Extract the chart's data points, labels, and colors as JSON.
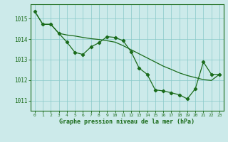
{
  "line1_x": [
    0,
    1,
    2,
    3,
    4,
    5,
    6,
    7,
    8,
    9,
    10,
    11,
    12,
    13,
    14,
    15,
    16,
    17,
    18,
    19,
    20,
    21,
    22,
    23
  ],
  "line1_y": [
    1015.35,
    1014.72,
    1014.72,
    1014.28,
    1013.85,
    1013.35,
    1013.25,
    1013.62,
    1013.82,
    1014.12,
    1014.08,
    1013.92,
    1013.38,
    1012.58,
    1012.28,
    1011.52,
    1011.47,
    1011.38,
    1011.28,
    1011.08,
    1011.58,
    1012.88,
    1012.28,
    1012.28
  ],
  "line2_x": [
    0,
    1,
    2,
    3,
    4,
    5,
    6,
    7,
    8,
    9,
    10,
    11,
    12,
    13,
    14,
    15,
    16,
    17,
    18,
    19,
    20,
    21,
    22,
    23
  ],
  "line2_y": [
    1015.35,
    1014.72,
    1014.72,
    1014.28,
    1014.2,
    1014.15,
    1014.08,
    1014.02,
    1013.98,
    1013.92,
    1013.85,
    1013.68,
    1013.48,
    1013.28,
    1013.08,
    1012.88,
    1012.68,
    1012.52,
    1012.35,
    1012.22,
    1012.12,
    1012.02,
    1011.98,
    1012.28
  ],
  "color": "#1a6b1a",
  "bg_color": "#cceaea",
  "grid_color": "#88c8c8",
  "xlabel": "Graphe pression niveau de la mer (hPa)",
  "ylim": [
    1010.5,
    1015.7
  ],
  "xlim": [
    -0.5,
    23.5
  ],
  "yticks": [
    1011,
    1012,
    1013,
    1014,
    1015
  ],
  "xticks": [
    0,
    1,
    2,
    3,
    4,
    5,
    6,
    7,
    8,
    9,
    10,
    11,
    12,
    13,
    14,
    15,
    16,
    17,
    18,
    19,
    20,
    21,
    22,
    23
  ]
}
